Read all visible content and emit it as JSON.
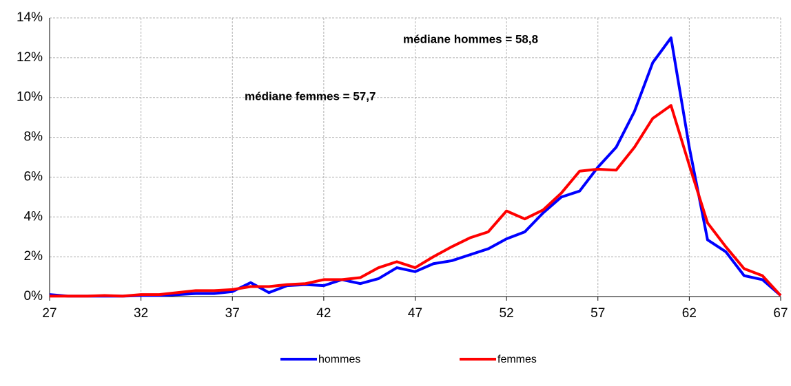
{
  "chart_data": {
    "type": "line",
    "x": [
      27,
      28,
      29,
      30,
      31,
      32,
      33,
      34,
      35,
      36,
      37,
      38,
      39,
      40,
      41,
      42,
      43,
      44,
      45,
      46,
      47,
      48,
      49,
      50,
      51,
      52,
      53,
      54,
      55,
      56,
      57,
      58,
      59,
      60,
      61,
      62,
      63,
      64,
      65,
      66,
      67
    ],
    "series": [
      {
        "name": "hommes",
        "color": "#0000ff",
        "values": [
          0.1,
          0.02,
          0.02,
          0.02,
          0.02,
          0.05,
          0.05,
          0.1,
          0.15,
          0.15,
          0.25,
          0.7,
          0.2,
          0.55,
          0.6,
          0.55,
          0.85,
          0.65,
          0.9,
          1.45,
          1.25,
          1.65,
          1.8,
          2.1,
          2.4,
          2.9,
          3.25,
          4.2,
          5.0,
          5.3,
          6.5,
          7.5,
          9.3,
          11.75,
          13.0,
          7.5,
          2.85,
          2.25,
          1.05,
          0.85,
          0.05
        ]
      },
      {
        "name": "femmes",
        "color": "#ff0000",
        "values": [
          0.02,
          0.02,
          0.02,
          0.05,
          0.02,
          0.1,
          0.1,
          0.2,
          0.3,
          0.3,
          0.35,
          0.5,
          0.5,
          0.6,
          0.65,
          0.85,
          0.85,
          0.95,
          1.45,
          1.75,
          1.45,
          2.0,
          2.5,
          2.95,
          3.25,
          4.3,
          3.9,
          4.35,
          5.2,
          6.3,
          6.4,
          6.35,
          7.5,
          8.95,
          9.6,
          6.6,
          3.7,
          2.5,
          1.4,
          1.05,
          0.05
        ]
      }
    ],
    "annotations": [
      {
        "text": "médiane hommes = 58,8",
        "color": "#0000ff"
      },
      {
        "text": "médiane femmes = 57,7",
        "color": "#ff0000"
      }
    ],
    "xlim": [
      27,
      67
    ],
    "xticks": [
      27,
      32,
      37,
      42,
      47,
      52,
      57,
      62,
      67
    ],
    "ylim": [
      0,
      14
    ],
    "yticks": [
      {
        "value": 0,
        "label": "0%"
      },
      {
        "value": 2,
        "label": "2%"
      },
      {
        "value": 4,
        "label": "4%"
      },
      {
        "value": 6,
        "label": "6%"
      },
      {
        "value": 8,
        "label": "8%"
      },
      {
        "value": 10,
        "label": "10%"
      },
      {
        "value": 12,
        "label": "12%"
      },
      {
        "value": 14,
        "label": "14%"
      }
    ],
    "grid": true,
    "legend": "bottom"
  }
}
